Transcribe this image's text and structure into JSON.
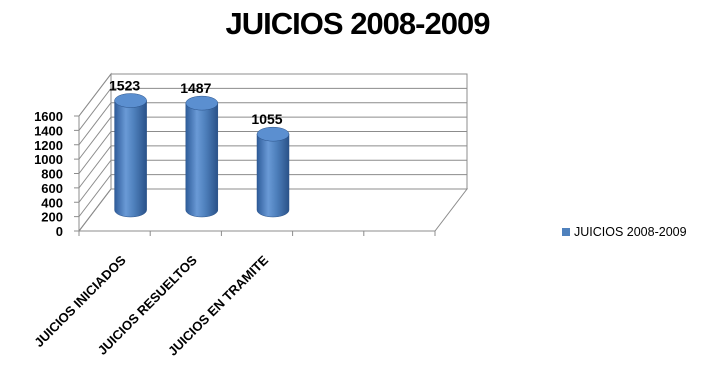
{
  "chart_data": {
    "type": "bar",
    "title": "JUICIOS 2008-2009",
    "xlabel": "",
    "ylabel": "",
    "categories": [
      "JUICIOS INICIADOS",
      "JUICIOS RESUELTOS",
      "JUICIOS EN TRAMITE"
    ],
    "series": [
      {
        "name": "JUICIOS 2008-2009",
        "values": [
          1523,
          1487,
          1055
        ]
      }
    ],
    "ylim": [
      0,
      1600
    ],
    "yticks": [
      0,
      200,
      400,
      600,
      800,
      1000,
      1200,
      1400,
      1600
    ],
    "grid": true,
    "legend": "right",
    "style": "3d-cylinder",
    "colors": {
      "bar": "#4F81BD",
      "bar_dark": "#2E5C9A",
      "grid": "#8c8c8c"
    }
  }
}
